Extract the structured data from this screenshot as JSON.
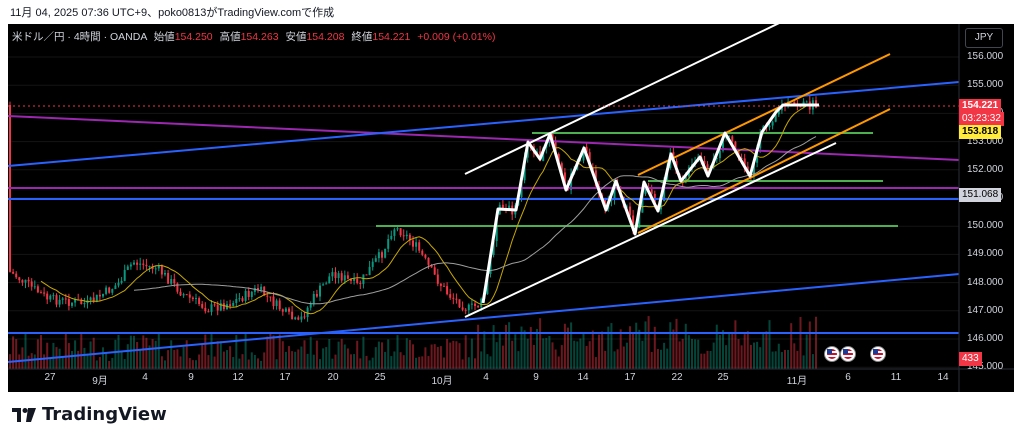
{
  "header": {
    "snapshot_text": "11月 04, 2025 07:36 UTC+9、poko0813がTradingView.comで作成"
  },
  "chart_info": {
    "symbol": "米ドル／円 · 4時間 · OANDA",
    "open_label": "始値",
    "open": "154.250",
    "high_label": "高値",
    "high": "154.263",
    "low_label": "安値",
    "low": "154.208",
    "close_label": "終値",
    "close": "154.221",
    "change": "+0.009 (+0.01%)"
  },
  "currency_button": "JPY",
  "price_axis": {
    "ticks": [
      "156.000",
      "155.000",
      "154.000",
      "153.000",
      "152.000",
      "151.000",
      "150.000",
      "149.000",
      "148.000",
      "147.000",
      "146.000",
      "145.000"
    ]
  },
  "badges": {
    "last_price": "154.221",
    "countdown": "03:23:32",
    "ma_value": "153.818",
    "level_value": "151.068",
    "volume_value": "433"
  },
  "time_axis": {
    "ticks": [
      "27",
      "9月",
      "4",
      "9",
      "12",
      "17",
      "20",
      "25",
      "10月",
      "4",
      "9",
      "14",
      "17",
      "22",
      "25",
      "11月",
      "6",
      "11",
      "14"
    ]
  },
  "footer": {
    "logo_text": "TradingView"
  },
  "colors": {
    "background": "#000000",
    "up": "#089981",
    "down": "#f23645",
    "price_badge": "#f23645",
    "ma_badge": "#ffeb3b",
    "trend_blue": "#2962ff",
    "purple": "#9c27b0",
    "orange": "#ff9800",
    "green": "#4caf50",
    "white": "#ffffff",
    "ma_yellow": "#c8a800",
    "ma_gray": "#9e9e9e"
  },
  "icons": [
    "tradingview-logo-icon",
    "us-flag-icon"
  ]
}
